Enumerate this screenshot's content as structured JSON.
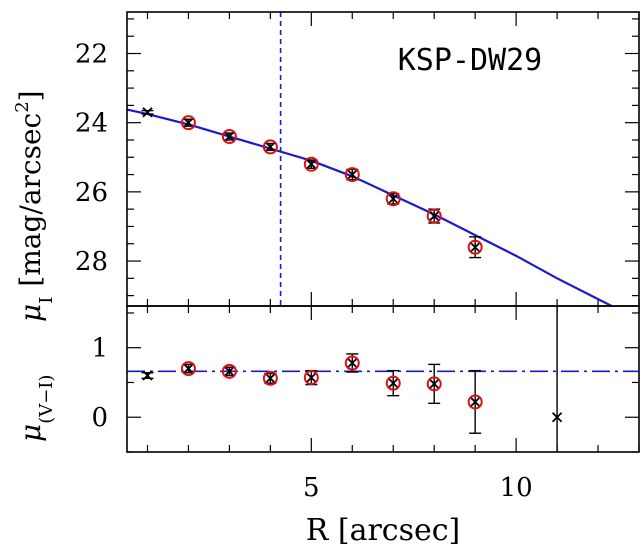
{
  "chart_data": [
    {
      "type": "scatter",
      "panel": "top",
      "title": "",
      "annotation": "KSP-DW29",
      "xlabel": "",
      "ylabel_main": "μ",
      "ylabel_sub": "I",
      "ylabel_rest": "[mag/arcsec",
      "ylabel_sup": "2",
      "ylabel_close": "]",
      "xlim": [
        0.5,
        13.0
      ],
      "ylim": [
        29.3,
        20.8
      ],
      "y_inverted": true,
      "yticks_major": [
        22,
        24,
        26,
        28
      ],
      "yticks_minor_step": 0.5,
      "xticks_minor_step": 1,
      "vline": {
        "x": 4.25,
        "style": "dashed",
        "color": "#1a1acc"
      },
      "fit_curve": {
        "x": [
          0.5,
          1,
          2,
          3,
          4,
          5,
          6,
          7,
          8,
          9,
          10,
          11,
          12,
          12.5
        ],
        "y": [
          23.62,
          23.75,
          24.05,
          24.4,
          24.75,
          25.1,
          25.55,
          26.1,
          26.65,
          27.25,
          27.85,
          28.5,
          29.1,
          29.4
        ],
        "color": "#1a1acc"
      },
      "series": [
        {
          "marker": "x",
          "x": [
            1,
            2,
            3,
            4,
            5,
            6,
            7,
            8,
            9
          ],
          "y": [
            23.7,
            24.0,
            24.4,
            24.7,
            25.2,
            25.5,
            26.2,
            26.7,
            27.6
          ],
          "yerr": [
            0.05,
            0.1,
            0.1,
            0.1,
            0.12,
            0.15,
            0.15,
            0.2,
            0.3
          ]
        },
        {
          "marker": "open-circle",
          "x": [
            2,
            3,
            4,
            5,
            6,
            7,
            8,
            9
          ],
          "y": [
            24.0,
            24.4,
            24.7,
            25.2,
            25.5,
            26.2,
            26.7,
            27.6
          ],
          "color": "#dd1111"
        }
      ]
    },
    {
      "type": "scatter",
      "panel": "bottom",
      "xlabel": "R [arcsec]",
      "ylabel_main": "μ",
      "ylabel_sub": "(V−I)",
      "xlim": [
        0.5,
        13.0
      ],
      "ylim": [
        -0.5,
        1.6
      ],
      "yticks_major": [
        0,
        1
      ],
      "yticks_minor_step": 0.5,
      "xticks_major": [
        5,
        10
      ],
      "xticks_minor_step": 1,
      "hline": {
        "y": 0.66,
        "style": "dashdot",
        "color": "#1a1acc"
      },
      "series": [
        {
          "marker": "x",
          "x": [
            1,
            2,
            3,
            4,
            5,
            6,
            7,
            8,
            9,
            11
          ],
          "y": [
            0.6,
            0.7,
            0.66,
            0.56,
            0.57,
            0.78,
            0.49,
            0.48,
            0.22,
            0.0
          ],
          "yerr": [
            0.04,
            0.06,
            0.06,
            0.07,
            0.1,
            0.13,
            0.18,
            0.28,
            0.45,
            1.9
          ]
        },
        {
          "marker": "open-circle",
          "x": [
            2,
            3,
            4,
            5,
            6,
            7,
            8,
            9
          ],
          "y": [
            0.7,
            0.66,
            0.56,
            0.57,
            0.78,
            0.49,
            0.48,
            0.22
          ],
          "color": "#dd1111"
        }
      ]
    }
  ]
}
